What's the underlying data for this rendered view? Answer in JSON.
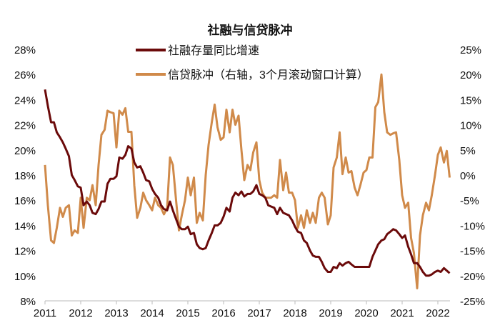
{
  "chart_data": {
    "type": "line",
    "title": "社融与信贷脉冲",
    "x_ticks": [
      "2011",
      "2012",
      "2013",
      "2014",
      "2015",
      "2016",
      "2017",
      "2018",
      "2019",
      "2020",
      "2021",
      "2022"
    ],
    "xlim": [
      2011,
      2022.4
    ],
    "y_left": {
      "ticks": [
        "28%",
        "26%",
        "24%",
        "22%",
        "20%",
        "18%",
        "16%",
        "14%",
        "12%",
        "10%",
        "8%"
      ],
      "ylim": [
        8,
        28
      ]
    },
    "y_right": {
      "ticks": [
        "25%",
        "20%",
        "15%",
        "10%",
        "5%",
        "0%",
        "-5%",
        "-10%",
        "-15%",
        "-20%",
        "-25%"
      ],
      "ylim": [
        -25,
        25
      ]
    },
    "grid": false,
    "legend_placement": "top-center",
    "series": [
      {
        "name": "社融存量同比增速",
        "axis": "left",
        "color": "#6b0a0a",
        "x": [
          2011.0,
          2011.08,
          2011.17,
          2011.25,
          2011.33,
          2011.42,
          2011.5,
          2011.58,
          2011.67,
          2011.75,
          2011.83,
          2011.92,
          2012.0,
          2012.08,
          2012.17,
          2012.25,
          2012.33,
          2012.42,
          2012.5,
          2012.58,
          2012.67,
          2012.75,
          2012.83,
          2012.92,
          2013.0,
          2013.08,
          2013.17,
          2013.25,
          2013.33,
          2013.42,
          2013.5,
          2013.58,
          2013.67,
          2013.75,
          2013.83,
          2013.92,
          2014.0,
          2014.08,
          2014.17,
          2014.25,
          2014.33,
          2014.42,
          2014.5,
          2014.58,
          2014.67,
          2014.75,
          2014.83,
          2014.92,
          2015.0,
          2015.08,
          2015.17,
          2015.25,
          2015.33,
          2015.42,
          2015.5,
          2015.58,
          2015.67,
          2015.75,
          2015.83,
          2015.92,
          2016.0,
          2016.08,
          2016.17,
          2016.25,
          2016.33,
          2016.42,
          2016.5,
          2016.58,
          2016.67,
          2016.75,
          2016.83,
          2016.92,
          2017.0,
          2017.08,
          2017.17,
          2017.25,
          2017.33,
          2017.42,
          2017.5,
          2017.58,
          2017.67,
          2017.75,
          2017.83,
          2017.92,
          2018.0,
          2018.08,
          2018.17,
          2018.25,
          2018.33,
          2018.42,
          2018.5,
          2018.58,
          2018.67,
          2018.75,
          2018.83,
          2018.92,
          2019.0,
          2019.08,
          2019.17,
          2019.25,
          2019.33,
          2019.42,
          2019.5,
          2019.58,
          2019.67,
          2019.75,
          2019.83,
          2019.92,
          2020.0,
          2020.08,
          2020.17,
          2020.25,
          2020.33,
          2020.42,
          2020.5,
          2020.58,
          2020.67,
          2020.75,
          2020.83,
          2020.92,
          2021.0,
          2021.08,
          2021.17,
          2021.25,
          2021.33,
          2021.42,
          2021.5,
          2021.58,
          2021.67,
          2021.75,
          2021.83,
          2021.92,
          2022.0,
          2022.08,
          2022.17,
          2022.25,
          2022.33
        ],
        "values": [
          24.8,
          23.5,
          22.2,
          22.2,
          21.4,
          21.0,
          20.6,
          20.1,
          19.5,
          18.0,
          17.6,
          17.1,
          17.0,
          15.6,
          15.9,
          15.6,
          15.0,
          14.9,
          15.3,
          15.9,
          15.9,
          17.3,
          17.7,
          17.7,
          17.9,
          19.4,
          19.3,
          19.6,
          20.3,
          20.1,
          19.0,
          18.6,
          18.7,
          18.2,
          17.6,
          17.5,
          16.9,
          16.5,
          16.2,
          15.6,
          15.3,
          15.2,
          15.9,
          15.2,
          14.5,
          13.9,
          13.7,
          13.7,
          13.9,
          13.3,
          13.4,
          12.5,
          12.2,
          12.1,
          12.2,
          12.8,
          13.4,
          14.0,
          14.0,
          14.2,
          14.7,
          15.4,
          15.1,
          16.2,
          16.6,
          16.4,
          16.7,
          16.3,
          16.5,
          16.5,
          16.7,
          17.2,
          16.5,
          16.4,
          16.2,
          15.6,
          15.5,
          15.4,
          14.9,
          15.4,
          15.0,
          14.9,
          14.8,
          14.4,
          13.9,
          13.5,
          13.4,
          12.8,
          12.6,
          12.0,
          11.6,
          11.5,
          11.5,
          11.1,
          10.6,
          10.3,
          10.3,
          10.7,
          10.6,
          11.0,
          10.8,
          11.0,
          11.1,
          10.9,
          10.7,
          10.7,
          10.7,
          10.7,
          10.7,
          10.7,
          11.5,
          12.0,
          12.5,
          12.8,
          12.9,
          13.3,
          13.5,
          13.7,
          13.6,
          13.3,
          13.0,
          13.2,
          12.3,
          11.7,
          11.0,
          11.0,
          10.7,
          10.3,
          10.0,
          10.0,
          10.1,
          10.3,
          10.4,
          10.3,
          10.6,
          10.4,
          10.2
        ]
      },
      {
        "name": "信贷脉冲（右轴，3个月滚动窗口计算）",
        "axis": "right",
        "color": "#d08a4a",
        "x": [
          2011.0,
          2011.08,
          2011.17,
          2011.25,
          2011.33,
          2011.42,
          2011.5,
          2011.58,
          2011.67,
          2011.75,
          2011.83,
          2011.92,
          2012.0,
          2012.08,
          2012.17,
          2012.25,
          2012.33,
          2012.42,
          2012.5,
          2012.58,
          2012.67,
          2012.75,
          2012.83,
          2012.92,
          2013.0,
          2013.08,
          2013.17,
          2013.25,
          2013.33,
          2013.42,
          2013.5,
          2013.58,
          2013.67,
          2013.75,
          2013.83,
          2013.92,
          2014.0,
          2014.08,
          2014.17,
          2014.25,
          2014.33,
          2014.42,
          2014.5,
          2014.58,
          2014.67,
          2014.75,
          2014.83,
          2014.92,
          2015.0,
          2015.08,
          2015.17,
          2015.25,
          2015.33,
          2015.42,
          2015.5,
          2015.58,
          2015.67,
          2015.75,
          2015.83,
          2015.92,
          2016.0,
          2016.08,
          2016.17,
          2016.25,
          2016.33,
          2016.42,
          2016.5,
          2016.58,
          2016.67,
          2016.75,
          2016.83,
          2016.92,
          2017.0,
          2017.08,
          2017.17,
          2017.25,
          2017.33,
          2017.42,
          2017.5,
          2017.58,
          2017.67,
          2017.75,
          2017.83,
          2017.92,
          2018.0,
          2018.08,
          2018.17,
          2018.25,
          2018.33,
          2018.42,
          2018.5,
          2018.58,
          2018.67,
          2018.75,
          2018.83,
          2018.92,
          2019.0,
          2019.08,
          2019.17,
          2019.25,
          2019.33,
          2019.42,
          2019.5,
          2019.58,
          2019.67,
          2019.75,
          2019.83,
          2019.92,
          2020.0,
          2020.08,
          2020.17,
          2020.25,
          2020.33,
          2020.42,
          2020.5,
          2020.58,
          2020.67,
          2020.75,
          2020.83,
          2020.92,
          2021.0,
          2021.08,
          2021.17,
          2021.25,
          2021.33,
          2021.42,
          2021.5,
          2021.58,
          2021.67,
          2021.75,
          2021.83,
          2021.92,
          2022.0,
          2022.08,
          2022.17,
          2022.25,
          2022.33
        ],
        "values": [
          2.0,
          -6,
          -13,
          -13.5,
          -10.5,
          -6.5,
          -8.3,
          -6.5,
          -6.0,
          -12,
          -11,
          -11.5,
          -4.5,
          -10.5,
          -4.5,
          -5.0,
          -2.0,
          -6.0,
          2.0,
          8.0,
          9.0,
          12.8,
          12.5,
          12.3,
          5.5,
          12.8,
          12.0,
          13.3,
          8.6,
          8.6,
          -2,
          -8.5,
          -6.5,
          -3.5,
          -5.0,
          -6.0,
          -7.0,
          -4.5,
          -6.0,
          -6.5,
          -7.8,
          -6.5,
          3.5,
          2.0,
          -5,
          -11,
          -8,
          -5,
          -0.5,
          -4,
          -0.5,
          -9.5,
          -7.5,
          -9.0,
          0,
          6,
          10.5,
          14.0,
          9.5,
          7.0,
          7.5,
          13.0,
          8.5,
          13.0,
          10.0,
          11.8,
          5.0,
          -1,
          2,
          1.0,
          4.5,
          6.5,
          -1.0,
          -3.5,
          -4.5,
          -4.5,
          -4.5,
          -4.0,
          -4.5,
          3.0,
          -3.0,
          0.5,
          -3.5,
          -3.5,
          -5.0,
          -10.5,
          -8,
          -10.5,
          -7.0,
          -9.5,
          -7.5,
          -9.5,
          -4.5,
          -3.5,
          -4.5,
          -9.8,
          -8,
          1.5,
          3.5,
          8.5,
          0.2,
          3.5,
          0.5,
          0.8,
          -2.5,
          -4,
          -2,
          0.5,
          1.0,
          3.5,
          3.5,
          13.5,
          14.5,
          20.0,
          12.5,
          8.5,
          8.0,
          8.3,
          8.5,
          3,
          -4,
          -6.5,
          -5.5,
          -12.5,
          -15.5,
          -22.5,
          -12,
          -8,
          -5.5,
          -7,
          -4,
          0,
          4.0,
          5.5,
          2.5,
          4.8,
          -0.5
        ]
      }
    ]
  }
}
